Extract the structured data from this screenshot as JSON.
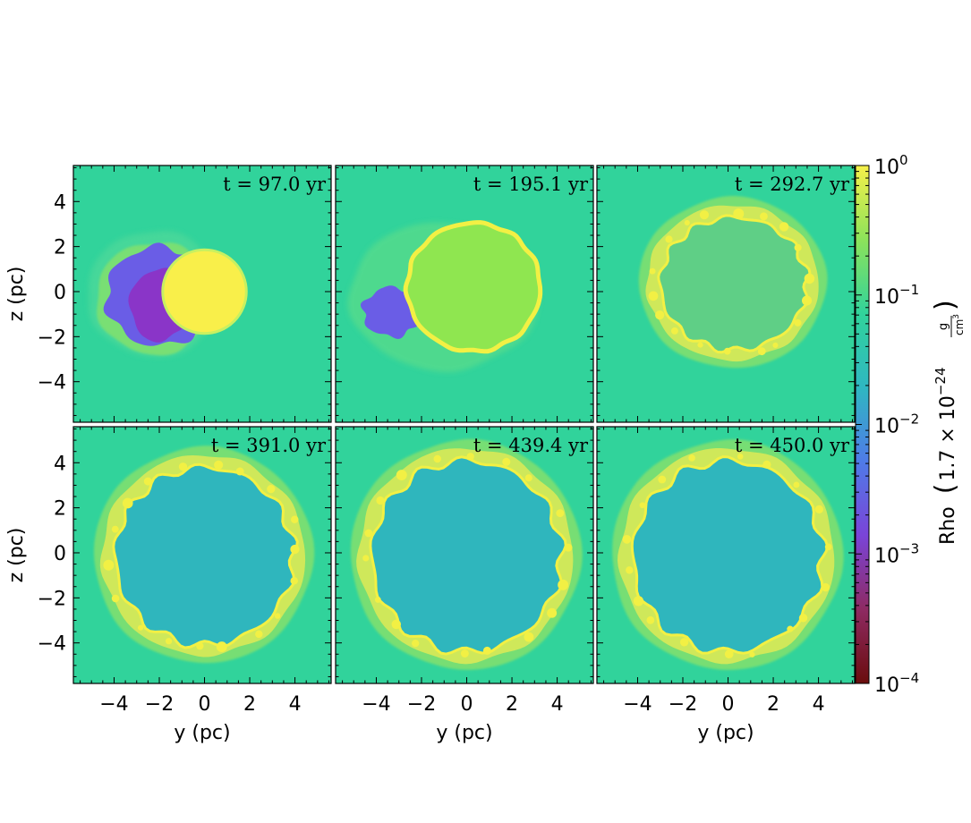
{
  "chart_data": {
    "type": "heatmap",
    "description_kind": "density slice snapshots",
    "panels": [
      {
        "time_label": "t = 97.0 yr",
        "t": 97.0,
        "stage": 0
      },
      {
        "time_label": "t = 195.1 yr",
        "t": 195.1,
        "stage": 1
      },
      {
        "time_label": "t = 292.7 yr",
        "t": 292.7,
        "stage": 2
      },
      {
        "time_label": "t = 391.0 yr",
        "t": 391.0,
        "stage": 3
      },
      {
        "time_label": "t = 439.4 yr",
        "t": 439.4,
        "stage": 4
      },
      {
        "time_label": "t = 450.0 yr",
        "t": 450.0,
        "stage": 5
      }
    ],
    "xlabel": "y  (pc)",
    "ylabel": "z  (pc)",
    "xlim": [
      -5.8,
      5.6
    ],
    "ylim": [
      -5.8,
      5.6
    ],
    "xticks": [
      -4,
      -2,
      0,
      2,
      4
    ],
    "yticks": [
      -4,
      -2,
      0,
      2,
      4
    ],
    "xtick_labels": [
      "−4",
      "−2",
      "0",
      "2",
      "4"
    ],
    "ytick_labels": [
      "−4",
      "−2",
      "0",
      "2",
      "4"
    ],
    "colorbar": {
      "label_prefix": "Rho",
      "label_factor": "1.7 × 10",
      "label_exp": "−24",
      "unit_num": "g",
      "unit_den": "cm",
      "unit_den_exp": "3",
      "scale": "log",
      "range": [
        0.0001,
        1
      ],
      "ticks": [
        {
          "value": 1,
          "base": "10",
          "exp": "0"
        },
        {
          "value": 0.1,
          "base": "10",
          "exp": "−1"
        },
        {
          "value": 0.01,
          "base": "10",
          "exp": "−2"
        },
        {
          "value": 0.001,
          "base": "10",
          "exp": "−3"
        },
        {
          "value": 0.0001,
          "base": "10",
          "exp": "−4"
        }
      ],
      "colormap_stops": [
        "#6a0d0d",
        "#8e2a62",
        "#7a44d8",
        "#4f7be8",
        "#2fb7c1",
        "#31d39b",
        "#8de35a",
        "#f6f04a"
      ]
    },
    "colors": {
      "ambient": "#31d39b",
      "shell": "#cfe85a",
      "shell_bright": "#f2f044",
      "interior": "#2fb6bd",
      "ejecta_core": "#f9ef4a",
      "early_interior": "#8fe650",
      "low_density": "#6a5de6",
      "lowest_density": "#8a35c8"
    }
  }
}
